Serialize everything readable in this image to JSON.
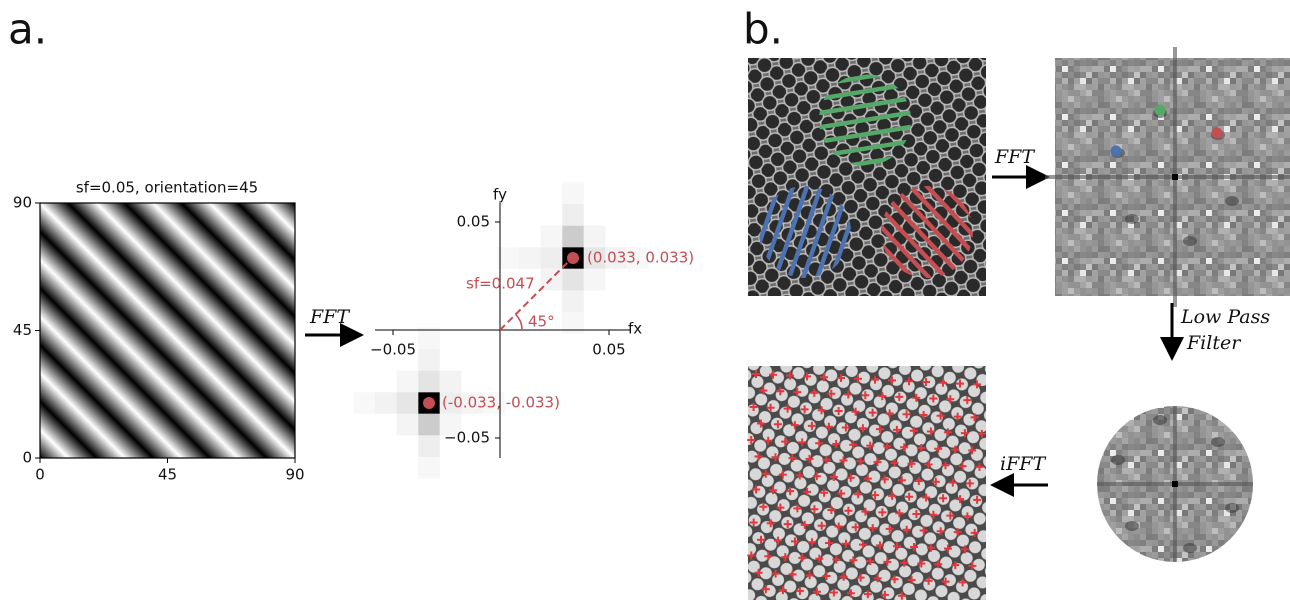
{
  "panel_a": {
    "label": "a.",
    "grating": {
      "title": "sf=0.05, orientation=45",
      "xticks": [
        "0",
        "45",
        "90"
      ],
      "yticks": [
        "0",
        "45",
        "90"
      ]
    },
    "arrow_label": "FFT",
    "spectrum": {
      "x_label": "fx",
      "y_label": "fy",
      "xticks": [
        "−0.05",
        "0.05"
      ],
      "yticks": [
        "0.05",
        "−0.05"
      ],
      "peak_labels": [
        "(0.033, 0.033)",
        "(-0.033, -0.033)"
      ],
      "sf_label": "sf=0.047",
      "angle_label": "45°"
    }
  },
  "panel_b": {
    "label": "b.",
    "fft_label": "FFT",
    "filter_label": [
      "Low Pass",
      "Filter"
    ],
    "ifft_label": "iFFT"
  }
}
